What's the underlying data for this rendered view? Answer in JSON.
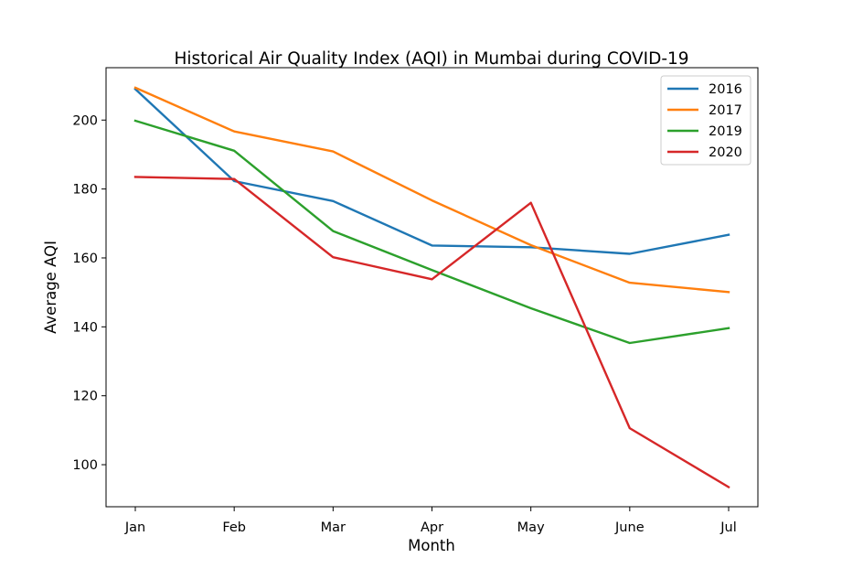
{
  "chart_data": {
    "type": "line",
    "title": "Historical Air Quality Index (AQI) in Mumbai during COVID-19",
    "xlabel": "Month",
    "ylabel": "Average AQI",
    "categories": [
      "Jan",
      "Feb",
      "Mar",
      "Apr",
      "May",
      "June",
      "Jul"
    ],
    "yticks": [
      100,
      120,
      140,
      160,
      180,
      200
    ],
    "ylim": [
      87.8,
      215.2
    ],
    "grid": false,
    "legend_position": "top-right",
    "series": [
      {
        "name": "2016",
        "color": "#1f77b4",
        "values": [
          209.0,
          182.3,
          176.5,
          163.6,
          163.1,
          161.2,
          166.7
        ]
      },
      {
        "name": "2017",
        "color": "#ff7f0e",
        "values": [
          209.4,
          196.7,
          190.9,
          176.7,
          163.7,
          152.8,
          150.1
        ]
      },
      {
        "name": "2019",
        "color": "#2ca02c",
        "values": [
          199.8,
          191.1,
          167.8,
          156.5,
          145.4,
          135.3,
          139.6
        ]
      },
      {
        "name": "2020",
        "color": "#d62728",
        "values": [
          183.5,
          182.9,
          160.2,
          153.8,
          176.0,
          110.6,
          93.5
        ]
      }
    ]
  }
}
